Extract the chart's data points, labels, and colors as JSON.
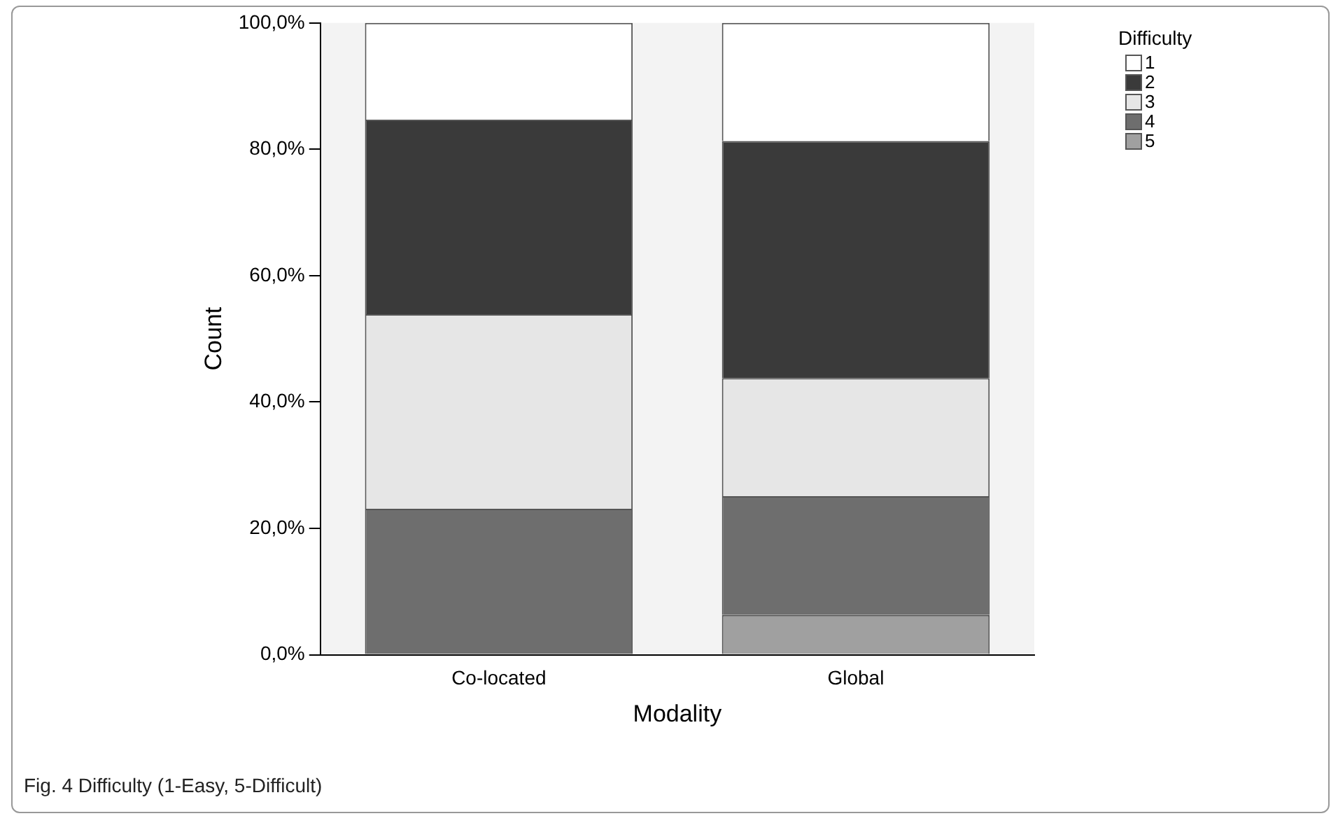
{
  "chart_data": {
    "type": "bar",
    "stacked": true,
    "xlabel": "Modality",
    "ylabel": "Count",
    "legend_title": "Difficulty",
    "legend": "top right",
    "categories": [
      "Co-located",
      "Global"
    ],
    "series": [
      {
        "name": "5",
        "color": "#a0a0a0",
        "values": [
          0,
          6.3
        ]
      },
      {
        "name": "4",
        "color": "#6e6e6e",
        "values": [
          23.1,
          18.8
        ]
      },
      {
        "name": "3",
        "color": "#e6e6e6",
        "values": [
          30.8,
          18.7
        ]
      },
      {
        "name": "2",
        "color": "#3a3a3a",
        "values": [
          30.8,
          37.5
        ]
      },
      {
        "name": "1",
        "color": "#ffffff",
        "values": [
          15.3,
          18.7
        ]
      }
    ],
    "ylim": [
      0,
      100
    ],
    "yticks": [
      {
        "value": 0,
        "label": "0,0%"
      },
      {
        "value": 20,
        "label": "20,0%"
      },
      {
        "value": 40,
        "label": "40,0%"
      },
      {
        "value": 60,
        "label": "60,0%"
      },
      {
        "value": 80,
        "label": "80,0%"
      },
      {
        "value": 100,
        "label": "100,0%"
      }
    ],
    "grid": false,
    "annotations": [
      "Fig. 4 Difficulty (1-Easy, 5-Difficult)"
    ]
  }
}
